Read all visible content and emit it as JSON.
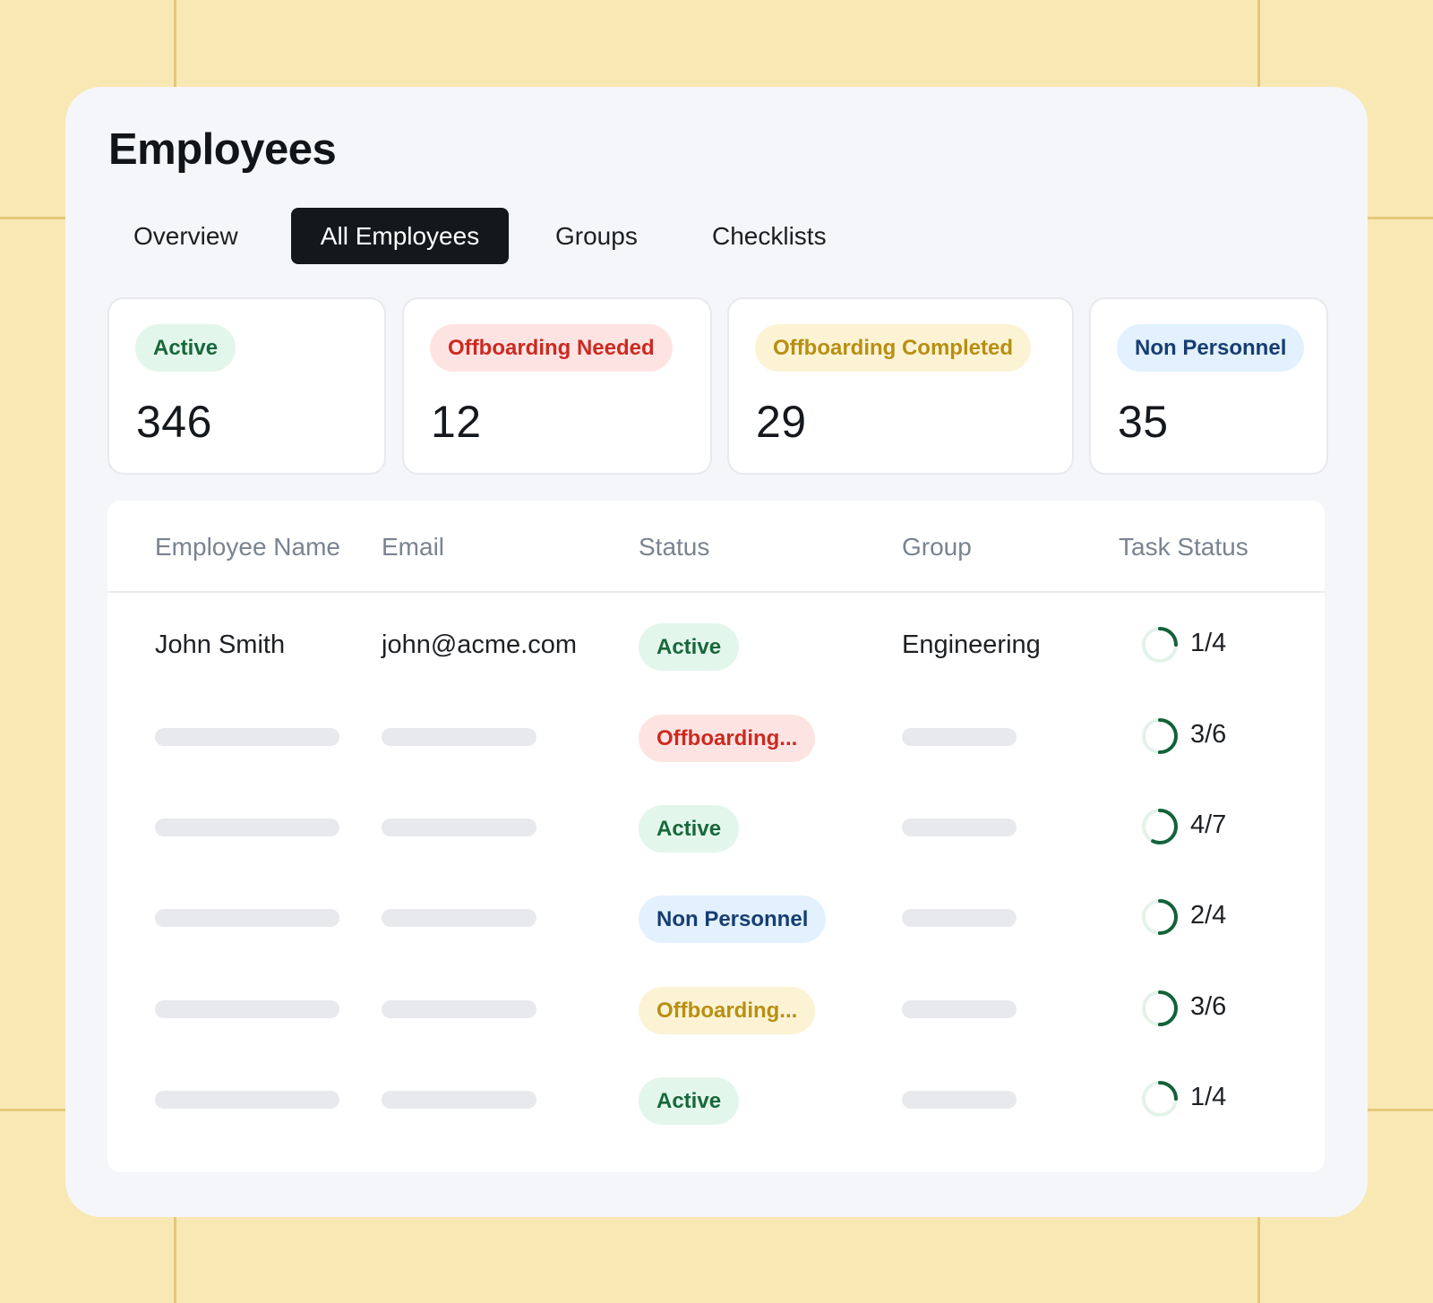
{
  "page": {
    "title": "Employees"
  },
  "tabs": [
    {
      "label": "Overview",
      "active": false
    },
    {
      "label": "All Employees",
      "active": true
    },
    {
      "label": "Groups",
      "active": false
    },
    {
      "label": "Checklists",
      "active": false
    }
  ],
  "stats": [
    {
      "label": "Active",
      "value": "346",
      "tone": "green"
    },
    {
      "label": "Offboarding Needed",
      "value": "12",
      "tone": "red"
    },
    {
      "label": "Offboarding Completed",
      "value": "29",
      "tone": "yellow"
    },
    {
      "label": "Non Personnel",
      "value": "35",
      "tone": "blue"
    }
  ],
  "table": {
    "columns": [
      "Employee Name",
      "Email",
      "Status",
      "Group",
      "Task Status"
    ],
    "rows": [
      {
        "name": "John Smith",
        "email": "john@acme.com",
        "status": "Active",
        "status_tone": "green",
        "group": "Engineering",
        "task": "1/4",
        "task_done": 1,
        "task_total": 4
      },
      {
        "name": "",
        "email": "",
        "status": "Offboarding...",
        "status_tone": "red",
        "group": "",
        "task": "3/6",
        "task_done": 3,
        "task_total": 6
      },
      {
        "name": "",
        "email": "",
        "status": "Active",
        "status_tone": "green",
        "group": "",
        "task": "4/7",
        "task_done": 4,
        "task_total": 7
      },
      {
        "name": "",
        "email": "",
        "status": "Non Personnel",
        "status_tone": "blue",
        "group": "",
        "task": "2/4",
        "task_done": 2,
        "task_total": 4
      },
      {
        "name": "",
        "email": "",
        "status": "Offboarding...",
        "status_tone": "yellow",
        "group": "",
        "task": "3/6",
        "task_done": 3,
        "task_total": 6
      },
      {
        "name": "",
        "email": "",
        "status": "Active",
        "status_tone": "green",
        "group": "",
        "task": "1/4",
        "task_done": 1,
        "task_total": 4
      }
    ]
  },
  "colors": {
    "progress_track": "#e3f3ea",
    "progress_fill": "#13623a",
    "background": "#f8e8b4",
    "active_tab": "#14171c"
  }
}
